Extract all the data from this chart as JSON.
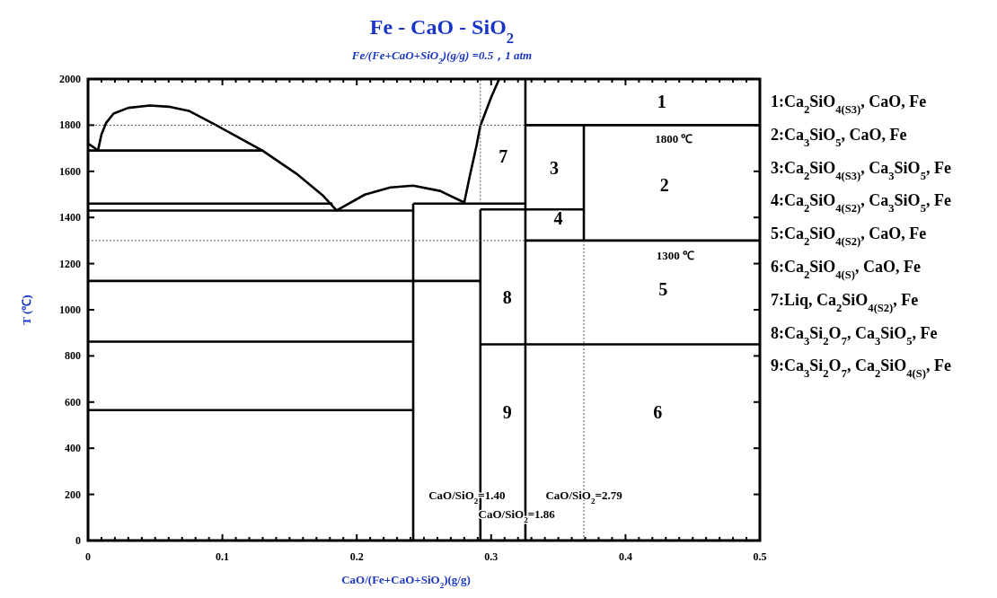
{
  "chart_data": {
    "type": "line",
    "title": "Fe - CaO - SiO$_{2}$",
    "subtitle": "Fe/(Fe+CaO+SiO$_{2}$)(g/g)  =0.5，1 atm",
    "xlabel": "CaO/(Fe+CaO+SiO$_{2}$)(g/g)",
    "ylabel": "T (℃)",
    "xlim": [
      0,
      0.5
    ],
    "ylim": [
      0,
      2000
    ],
    "xticks": [
      0,
      {
        "value": 0.01,
        "label": null
      },
      {
        "value": 0.02,
        "label": null
      },
      {
        "value": 0.03,
        "label": null
      },
      {
        "value": 0.04,
        "label": null
      },
      {
        "value": 0.05,
        "label": null
      },
      {
        "value": 0.06,
        "label": null
      },
      {
        "value": 0.07,
        "label": null
      },
      {
        "value": 0.08,
        "label": null
      },
      {
        "value": 0.09,
        "label": null
      },
      0.1,
      {
        "value": 0.11,
        "label": null
      },
      {
        "value": 0.12,
        "label": null
      },
      {
        "value": 0.13,
        "label": null
      },
      {
        "value": 0.14,
        "label": null
      },
      {
        "value": 0.15,
        "label": null
      },
      {
        "value": 0.16,
        "label": null
      },
      {
        "value": 0.17,
        "label": null
      },
      {
        "value": 0.18,
        "label": null
      },
      {
        "value": 0.19,
        "label": null
      },
      0.2,
      {
        "value": 0.21,
        "label": null
      },
      {
        "value": 0.22,
        "label": null
      },
      {
        "value": 0.23,
        "label": null
      },
      {
        "value": 0.24,
        "label": null
      },
      {
        "value": 0.25,
        "label": null
      },
      {
        "value": 0.26,
        "label": null
      },
      {
        "value": 0.27,
        "label": null
      },
      {
        "value": 0.28,
        "label": null
      },
      {
        "value": 0.29,
        "label": null
      },
      0.3,
      {
        "value": 0.31,
        "label": null
      },
      {
        "value": 0.32,
        "label": null
      },
      {
        "value": 0.33,
        "label": null
      },
      {
        "value": 0.34,
        "label": null
      },
      {
        "value": 0.35,
        "label": null
      },
      {
        "value": 0.36,
        "label": null
      },
      {
        "value": 0.37,
        "label": null
      },
      {
        "value": 0.38,
        "label": null
      },
      {
        "value": 0.39,
        "label": null
      },
      0.4,
      {
        "value": 0.41,
        "label": null
      },
      {
        "value": 0.42,
        "label": null
      },
      {
        "value": 0.43,
        "label": null
      },
      {
        "value": 0.44,
        "label": null
      },
      {
        "value": 0.45,
        "label": null
      },
      {
        "value": 0.46,
        "label": null
      },
      {
        "value": 0.47,
        "label": null
      },
      {
        "value": 0.48,
        "label": null
      },
      {
        "value": 0.49,
        "label": null
      },
      0.5
    ],
    "yticks": [
      0,
      200,
      400,
      600,
      800,
      1000,
      1200,
      1400,
      1600,
      1800,
      2000
    ],
    "grid": false,
    "marker": "none",
    "series": [
      {
        "color": "#000000",
        "x": [
          0.242,
          0.242
        ],
        "values": [
          0,
          1460
        ]
      },
      {
        "color": "#000000",
        "x": [
          0.292,
          0.292
        ],
        "values": [
          0,
          1435
        ]
      },
      {
        "color": "#000000",
        "x": [
          0.3255,
          0.3255
        ],
        "values": [
          0,
          2000
        ]
      },
      {
        "color": "#000000",
        "x": [
          0.369,
          0.369
        ],
        "values": [
          1300,
          1800
        ]
      },
      {
        "color": "#000000",
        "x": [
          0.3255,
          0.5
        ],
        "values": [
          1800,
          1800
        ]
      },
      {
        "color": "#000000",
        "x": [
          0.3255,
          0.5
        ],
        "values": [
          1300,
          1300
        ]
      },
      {
        "color": "#000000",
        "x": [
          0.292,
          0.369
        ],
        "values": [
          1435,
          1435
        ]
      },
      {
        "color": "#000000",
        "x": [
          0.292,
          0.5
        ],
        "values": [
          850,
          850
        ]
      },
      {
        "color": "#000000",
        "x": [
          0,
          0.13
        ],
        "values": [
          1690,
          1690
        ]
      },
      {
        "color": "#000000",
        "x": [
          0,
          0.182
        ],
        "values": [
          1460,
          1460
        ]
      },
      {
        "color": "#000000",
        "x": [
          0.242,
          0.3255
        ],
        "values": [
          1460,
          1460
        ]
      },
      {
        "color": "#000000",
        "x": [
          0,
          0.242
        ],
        "values": [
          1430,
          1430
        ]
      },
      {
        "color": "#000000",
        "x": [
          0,
          0.292
        ],
        "values": [
          1125,
          1125
        ]
      },
      {
        "color": "#000000",
        "x": [
          0,
          0.242
        ],
        "values": [
          862,
          862
        ]
      },
      {
        "color": "#000000",
        "x": [
          0,
          0.242
        ],
        "values": [
          565,
          565
        ]
      },
      {
        "color": "#000000",
        "x": [
          0,
          0.004,
          0.0074,
          0.01,
          0.0135,
          0.019,
          0.03,
          0.046,
          0.06,
          0.075,
          0.095,
          0.13,
          0.155,
          0.175,
          0.185,
          0.206,
          0.225,
          0.242,
          0.262,
          0.28,
          0.284,
          0.289,
          0.292,
          0.3,
          0.306
        ],
        "values": [
          1720,
          1705,
          1690,
          1760,
          1810,
          1850,
          1875,
          1885,
          1880,
          1862,
          1801,
          1689,
          1590,
          1494,
          1430,
          1499,
          1530,
          1538,
          1515,
          1465,
          1577,
          1708,
          1798,
          1920,
          2000
        ]
      },
      {
        "color": "#555555",
        "line_style": "dotted",
        "x": [
          0.292,
          0.292
        ],
        "values": [
          1460,
          2000
        ]
      },
      {
        "color": "#555555",
        "line_style": "dotted",
        "x": [
          0,
          0.3255
        ],
        "values": [
          1800,
          1800
        ]
      },
      {
        "color": "#555555",
        "line_style": "dotted",
        "x": [
          0,
          0.3255
        ],
        "values": [
          1300,
          1300
        ]
      },
      {
        "color": "#555555",
        "line_style": "dotted",
        "x": [
          0.369,
          0.369
        ],
        "values": [
          0,
          1300
        ]
      }
    ],
    "annotations": [
      "1",
      "2",
      "3",
      "4",
      "5",
      "6",
      "7",
      "8",
      "9",
      "1800 ℃",
      "1300 ℃",
      "CaO/SiO$_{2}$=1.40",
      "CaO/SiO$_{2}$=2.79",
      "CaO/SiO$_{2}$=1.86",
      "1:Ca$_{2}$SiO$_{4(S3)}$, CaO, Fe",
      "2:Ca$_{3}$SiO$_{5}$, CaO, Fe",
      "3:Ca$_{2}$SiO$_{4(S3)}$, Ca$_{3}$SiO$_{5}$, Fe",
      "4:Ca$_{2}$SiO$_{4(S2)}$, Ca$_{3}$SiO$_{5}$, Fe",
      "5:Ca$_{2}$SiO$_{4(S2)}$, CaO, Fe",
      "6:Ca$_{2}$SiO$_{4(S)}$, CaO, Fe",
      "7:Liq, Ca$_{2}$SiO$_{4(S2)}$, Fe",
      "8:Ca$_{3}$Si$_{2}$O$_{7}$, Ca$_{3}$SiO$_{5}$, Fe",
      "9:Ca$_{3}$Si$_{2}$O$_{7}$, Ca$_{2}$SiO$_{4(S)}$, Fe"
    ]
  }
}
